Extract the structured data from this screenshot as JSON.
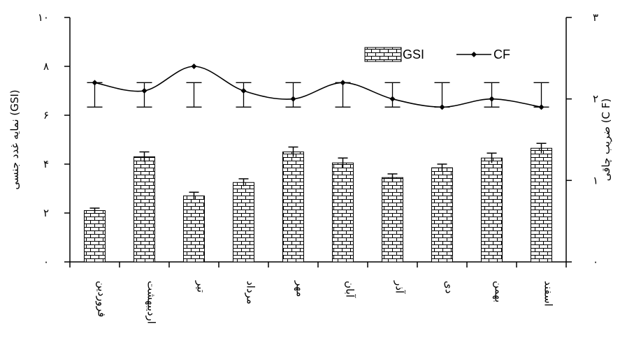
{
  "chart_data": {
    "type": "bar",
    "categories": [
      "فروردین",
      "اردیبهشت",
      "تیر",
      "مرداد",
      "مهر",
      "آبان",
      "آذر",
      "دی",
      "بهمن",
      "اسفند"
    ],
    "left_axis": {
      "label": "نمایه غدد جنسی (GSI)",
      "ylim": [
        0,
        10
      ],
      "ticks": [
        0,
        2,
        4,
        6,
        8,
        10
      ],
      "tick_labels": [
        "۰",
        "۲",
        "۴",
        "۶",
        "۸",
        "۱۰"
      ]
    },
    "right_axis": {
      "label": "ضریب چاقی (C F)",
      "ylim": [
        0,
        3
      ],
      "ticks": [
        0,
        1,
        2,
        3
      ],
      "tick_labels": [
        "۰",
        "۱",
        "۲",
        "۳"
      ]
    },
    "series": [
      {
        "name": "GSI",
        "type": "bar",
        "axis": "left",
        "values": [
          2.1,
          4.3,
          2.7,
          3.25,
          4.5,
          4.05,
          3.45,
          3.85,
          4.25,
          4.65
        ],
        "errors": [
          0.1,
          0.2,
          0.15,
          0.15,
          0.2,
          0.2,
          0.15,
          0.15,
          0.2,
          0.2
        ]
      },
      {
        "name": "CF",
        "type": "line",
        "axis": "right",
        "values": [
          2.2,
          2.1,
          2.4,
          2.1,
          2.0,
          2.2,
          2.0,
          1.9,
          2.0,
          1.9
        ],
        "err_up": [
          2.2,
          2.2,
          2.2,
          2.2,
          2.2,
          2.2,
          2.2,
          2.2,
          2.2,
          2.2
        ],
        "err_down": [
          1.9,
          1.9,
          1.9,
          1.9,
          1.9,
          1.9,
          1.9,
          1.9,
          1.9,
          1.9
        ]
      }
    ],
    "legend_placement": "top-right",
    "grid": false
  }
}
